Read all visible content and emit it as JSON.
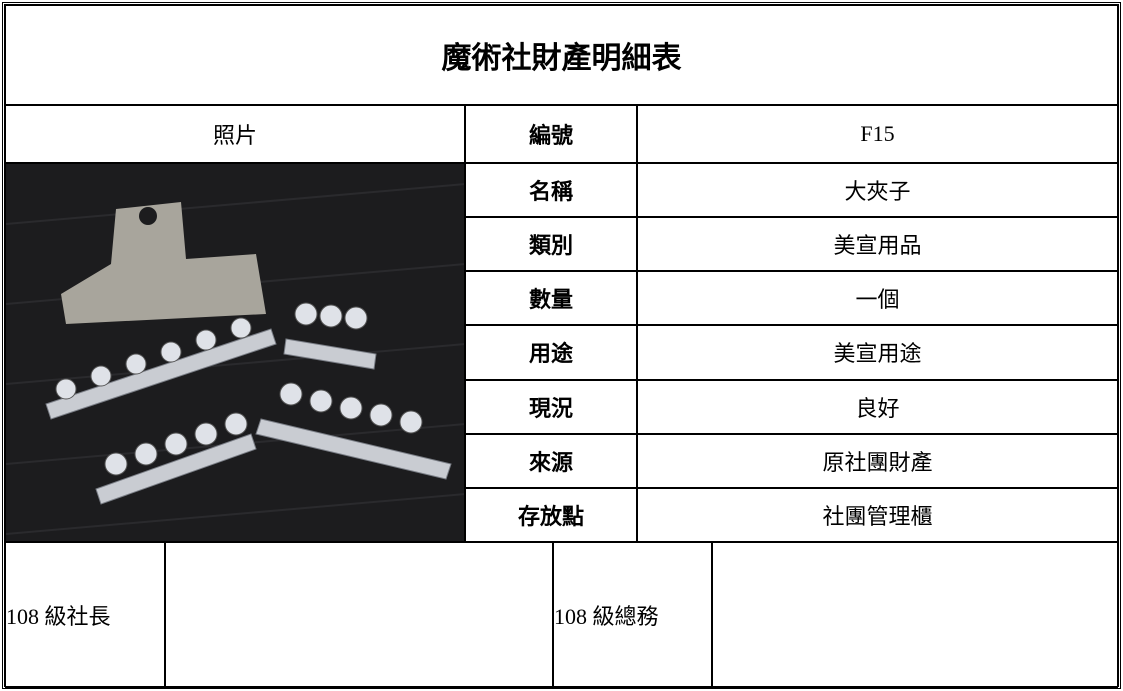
{
  "title": "魔術社財產明細表",
  "table": {
    "photo_label": "照片",
    "rows": [
      [
        "編號",
        "F15"
      ],
      [
        "名稱",
        "大夾子"
      ],
      [
        "類別",
        "美宣用品"
      ],
      [
        "數量",
        "一個"
      ],
      [
        "用途",
        "美宣用途"
      ],
      [
        "現況",
        "良好"
      ],
      [
        "來源",
        "原社團財產"
      ],
      [
        "存放點",
        "社團管理櫃"
      ]
    ]
  },
  "signatures": [
    "108 級社長",
    "108 級總務"
  ]
}
